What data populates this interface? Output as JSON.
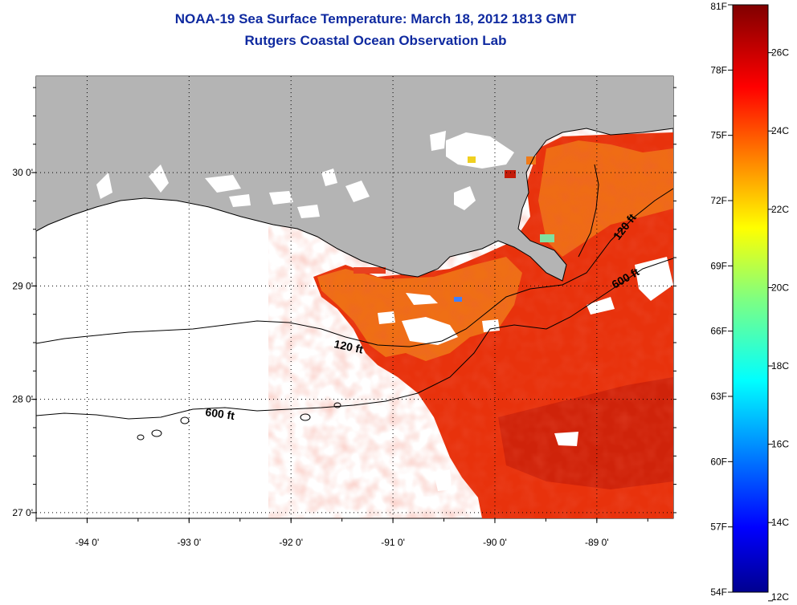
{
  "title": "NOAA-19 Sea Surface Temperature:  March 18, 2012 1813 GMT",
  "subtitle": "Rutgers Coastal Ocean Observation Lab",
  "map": {
    "lon_range": [
      -94.5,
      -88.25
    ],
    "lat_range": [
      26.95,
      30.85
    ],
    "lon_ticks": [
      {
        "lon": -94,
        "label": "-94 0'"
      },
      {
        "lon": -93,
        "label": "-93 0'"
      },
      {
        "lon": -92,
        "label": "-92 0'"
      },
      {
        "lon": -91,
        "label": "-91 0'"
      },
      {
        "lon": -90,
        "label": "-90 0'"
      },
      {
        "lon": -89,
        "label": "-89 0'"
      }
    ],
    "lat_ticks": [
      {
        "lat": 30,
        "label": "30 0'"
      },
      {
        "lat": 29,
        "label": "29 0'"
      },
      {
        "lat": 28,
        "label": "28 0'"
      },
      {
        "lat": 27,
        "label": "27 0'"
      }
    ],
    "grid": true,
    "contour_labels": [
      "120 ft",
      "600 ft",
      "120 ft",
      "600 ft"
    ],
    "colors": {
      "land": "#b4b4b4",
      "warm_water": "#e8320c",
      "mid_water": "#f07a18",
      "cloud_mask": "#ffffff"
    }
  },
  "colorbar": {
    "range_f": [
      54,
      81
    ],
    "labels_f": [
      "81F",
      "78F",
      "75F",
      "72F",
      "69F",
      "66F",
      "63F",
      "60F",
      "57F",
      "54F"
    ],
    "labels_c": [
      "26C",
      "24C",
      "22C",
      "20C",
      "18C",
      "16C",
      "14C",
      "12C"
    ],
    "colormap": "jet"
  }
}
